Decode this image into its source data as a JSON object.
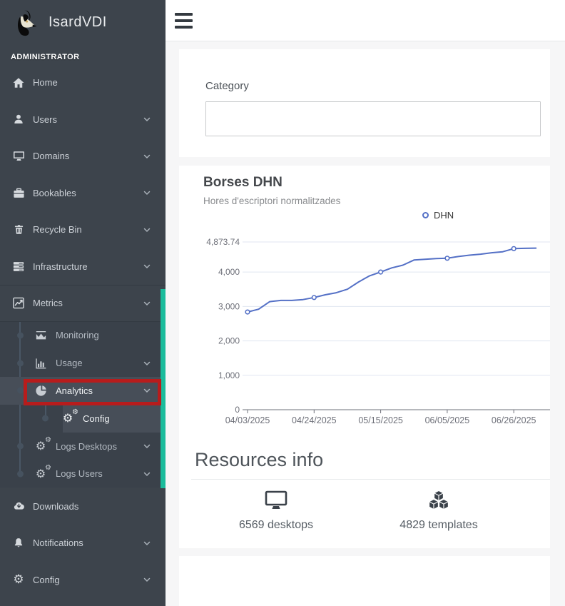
{
  "app": {
    "title": "IsardVDI",
    "role_label": "ADMINISTRATOR"
  },
  "colors": {
    "accent_teal": "#1abc9c",
    "annotation_red": "#b71c1c"
  },
  "sidebar": {
    "items": [
      {
        "label": "Home"
      },
      {
        "label": "Users"
      },
      {
        "label": "Domains"
      },
      {
        "label": "Bookables"
      },
      {
        "label": "Recycle Bin"
      },
      {
        "label": "Infrastructure"
      },
      {
        "label": "Metrics"
      },
      {
        "label": "Monitoring"
      },
      {
        "label": "Usage"
      },
      {
        "label": "Analytics"
      },
      {
        "label": "Config"
      },
      {
        "label": "Logs Desktops"
      },
      {
        "label": "Logs Users"
      },
      {
        "label": "Downloads"
      },
      {
        "label": "Notifications"
      },
      {
        "label": "Config"
      }
    ]
  },
  "main": {
    "category": {
      "label": "Category",
      "value": ""
    },
    "resources": {
      "heading": "Resources info",
      "stats": [
        {
          "icon": "desktop-icon",
          "label": "6569 desktops"
        },
        {
          "icon": "templates-cubes-icon",
          "label": "4829 templates"
        }
      ]
    }
  },
  "chart_data": {
    "type": "line",
    "title": "Borses DHN",
    "subtitle": "Hores d'escriptori normalitzades",
    "series_name": "DHN",
    "legend_position": "top-center",
    "grid": true,
    "x_start": "04/03/2025",
    "x_interval_days": 3.5,
    "x_tick_labels": [
      "04/03/2025",
      "04/24/2025",
      "05/15/2025",
      "06/05/2025",
      "06/26/2025"
    ],
    "y_ticks": [
      0,
      1000,
      2000,
      3000,
      4000,
      4873.74
    ],
    "y_tick_labels": [
      "0",
      "1,000",
      "2,000",
      "3,000",
      "4,000",
      "4,873.74"
    ],
    "ylim": [
      0,
      4873.74
    ],
    "values": [
      2840,
      2920,
      3140,
      3175,
      3175,
      3200,
      3260,
      3340,
      3400,
      3500,
      3710,
      3890,
      4000,
      4120,
      4200,
      4350,
      4370,
      4390,
      4400,
      4450,
      4490,
      4520,
      4560,
      4590,
      4680,
      4690,
      4695
    ],
    "marker_every": 6,
    "line_color": "#5470c6",
    "grid_color": "#E0E6F1",
    "axis_color": "#6E7079"
  }
}
